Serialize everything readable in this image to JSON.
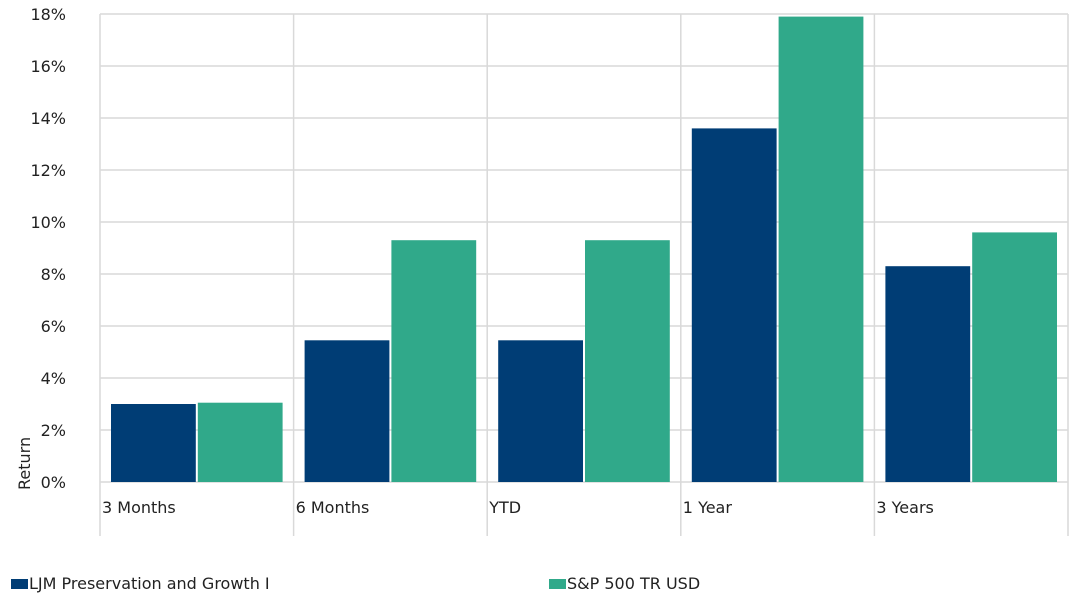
{
  "chart_data": {
    "type": "bar",
    "categories": [
      "3 Months",
      "6 Months",
      "YTD",
      "1 Year",
      "3 Years"
    ],
    "series": [
      {
        "name": "LJM Preservation and Growth I",
        "color": "#003d75",
        "values": [
          3.0,
          5.45,
          5.45,
          13.6,
          8.3
        ]
      },
      {
        "name": "S&P 500 TR USD",
        "color": "#30a98a",
        "values": [
          3.05,
          9.3,
          9.3,
          17.9,
          9.6
        ]
      }
    ],
    "ylabel": "Return",
    "ylim": [
      0,
      18
    ],
    "yticks": [
      "0%",
      "2%",
      "4%",
      "6%",
      "8%",
      "10%",
      "12%",
      "14%",
      "16%",
      "18%"
    ],
    "grid": true,
    "legend": "bottom"
  }
}
